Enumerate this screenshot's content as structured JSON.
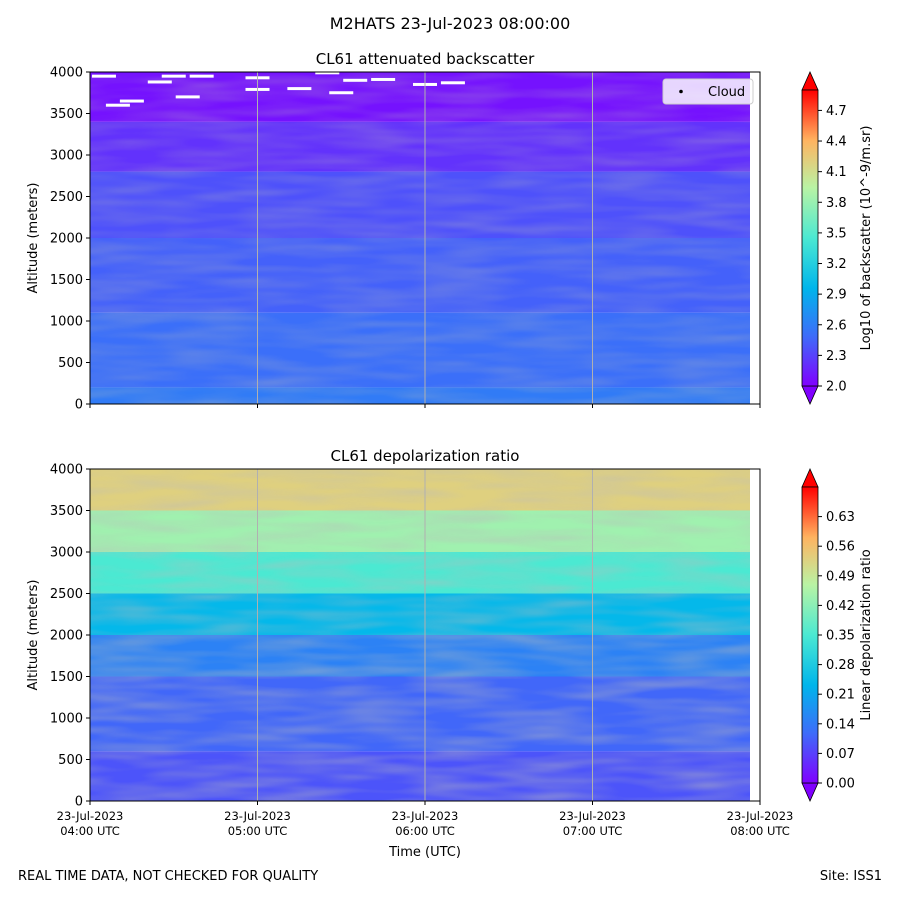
{
  "suptitle": "M2HATS 23-Jul-2023 08:00:00",
  "footer": {
    "left": "REAL TIME DATA, NOT CHECKED FOR QUALITY",
    "right": "Site: ISS1"
  },
  "colors": {
    "cmap": [
      "#8000ff",
      "#3d6df9",
      "#00b5eb",
      "#4be9d2",
      "#b9f3a4",
      "#ffb360",
      "#ff0000"
    ],
    "cloud_fill": "#ffffff"
  },
  "chart_data": [
    {
      "type": "heatmap",
      "title": "CL61 attenuated backscatter",
      "ylabel": "Altitude (meters)",
      "ylim": [
        0,
        4000
      ],
      "y_ticks": [
        "0",
        "500",
        "1000",
        "1500",
        "2000",
        "2500",
        "3000",
        "3500",
        "4000"
      ],
      "x_tick_labels_visible": false,
      "colorbar": {
        "label": "Log10 of backscatter (10^-9/m.sr)",
        "vmin": 2.0,
        "vmax": 4.9,
        "ticks": [
          "2.0",
          "2.3",
          "2.6",
          "2.9",
          "3.2",
          "3.5",
          "3.8",
          "4.1",
          "4.4",
          "4.7"
        ]
      },
      "legend": {
        "label": "Cloud",
        "placement": "top-right"
      },
      "layers": [
        {
          "alt_from": 0,
          "alt_to": 200,
          "value": 2.58
        },
        {
          "alt_from": 200,
          "alt_to": 1100,
          "value": 2.5
        },
        {
          "alt_from": 1100,
          "alt_to": 2000,
          "value": 2.43
        },
        {
          "alt_from": 2000,
          "alt_to": 2800,
          "value": 2.36
        },
        {
          "alt_from": 2800,
          "alt_to": 3400,
          "value": 2.22
        },
        {
          "alt_from": 3400,
          "alt_to": 4000,
          "value": 2.08
        }
      ],
      "cloud_points": [
        {
          "time": "04:05",
          "alt": 3950
        },
        {
          "time": "04:10",
          "alt": 3600
        },
        {
          "time": "04:15",
          "alt": 3650
        },
        {
          "time": "04:25",
          "alt": 3880
        },
        {
          "time": "04:30",
          "alt": 3950
        },
        {
          "time": "04:35",
          "alt": 3700
        },
        {
          "time": "04:40",
          "alt": 3950
        },
        {
          "time": "05:00",
          "alt": 3790
        },
        {
          "time": "05:00",
          "alt": 3930
        },
        {
          "time": "05:15",
          "alt": 3800
        },
        {
          "time": "05:25",
          "alt": 3990
        },
        {
          "time": "05:30",
          "alt": 3750
        },
        {
          "time": "05:35",
          "alt": 3900
        },
        {
          "time": "05:45",
          "alt": 3910
        },
        {
          "time": "06:00",
          "alt": 3850
        },
        {
          "time": "06:10",
          "alt": 3870
        }
      ]
    },
    {
      "type": "heatmap",
      "title": "CL61 depolarization ratio",
      "ylabel": "Altitude (meters)",
      "xlabel": "Time (UTC)",
      "ylim": [
        0,
        4000
      ],
      "y_ticks": [
        "0",
        "500",
        "1000",
        "1500",
        "2000",
        "2500",
        "3000",
        "3500",
        "4000"
      ],
      "x_ticks": [
        {
          "date": "23-Jul-2023",
          "time": "04:00 UTC"
        },
        {
          "date": "23-Jul-2023",
          "time": "05:00 UTC"
        },
        {
          "date": "23-Jul-2023",
          "time": "06:00 UTC"
        },
        {
          "date": "23-Jul-2023",
          "time": "07:00 UTC"
        },
        {
          "date": "23-Jul-2023",
          "time": "08:00 UTC"
        }
      ],
      "colorbar": {
        "label": "Linear depolarization ratio",
        "vmin": 0.0,
        "vmax": 0.7,
        "ticks": [
          "0.00",
          "0.07",
          "0.14",
          "0.21",
          "0.28",
          "0.35",
          "0.42",
          "0.49",
          "0.56",
          "0.63"
        ]
      },
      "layers": [
        {
          "alt_from": 0,
          "alt_to": 600,
          "value": 0.09
        },
        {
          "alt_from": 600,
          "alt_to": 1500,
          "value": 0.11
        },
        {
          "alt_from": 1500,
          "alt_to": 2000,
          "value": 0.15
        },
        {
          "alt_from": 2000,
          "alt_to": 2500,
          "value": 0.24
        },
        {
          "alt_from": 2500,
          "alt_to": 3000,
          "value": 0.35
        },
        {
          "alt_from": 3000,
          "alt_to": 3500,
          "value": 0.44
        },
        {
          "alt_from": 3500,
          "alt_to": 4000,
          "value": 0.53
        }
      ]
    }
  ]
}
